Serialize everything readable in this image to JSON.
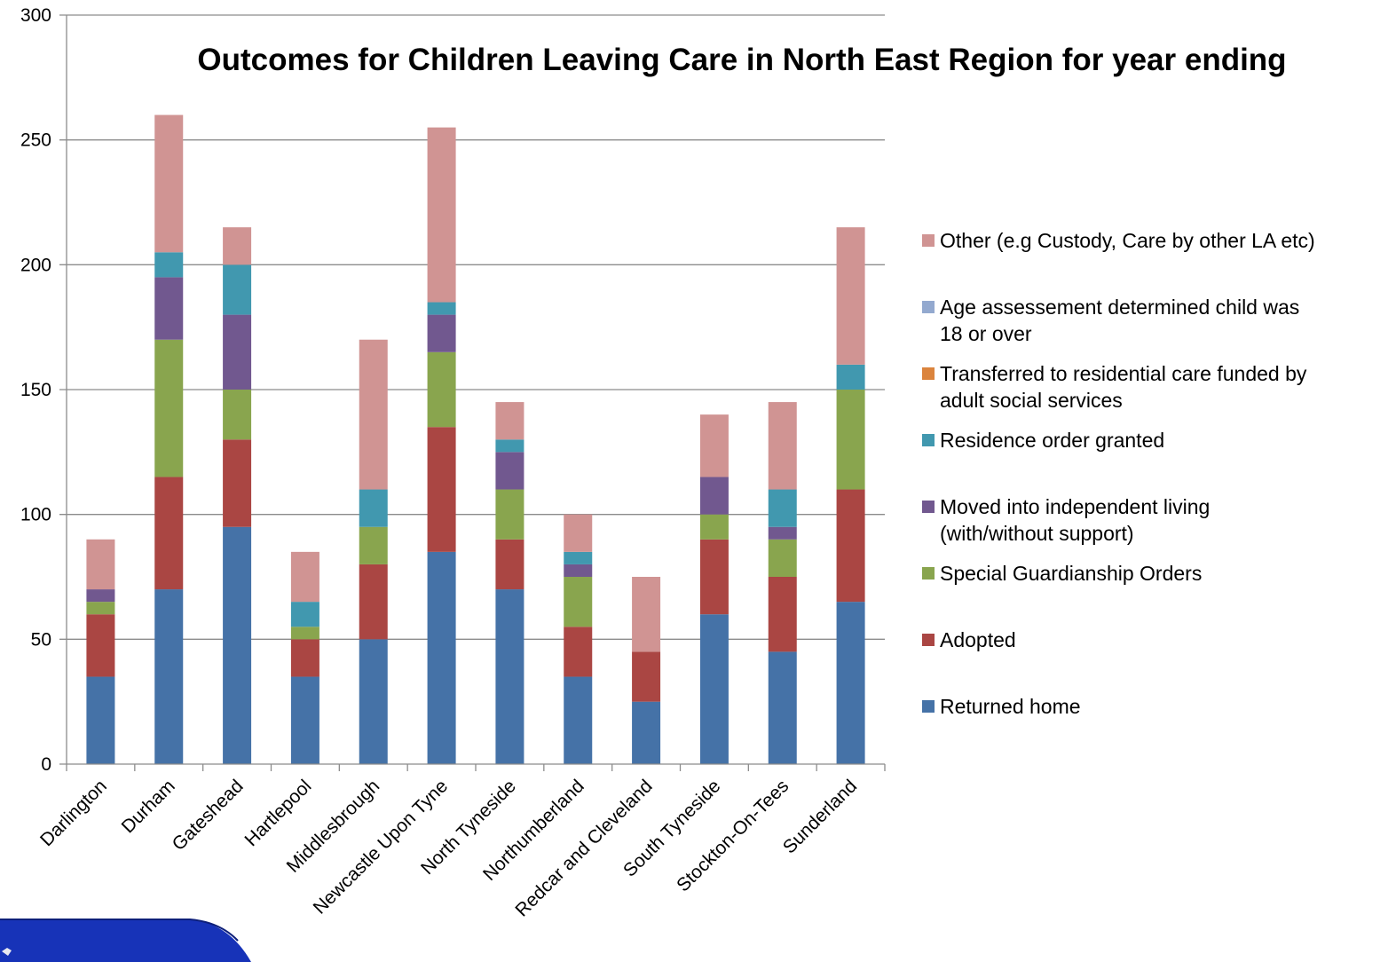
{
  "chart_data": {
    "type": "bar",
    "stacked": true,
    "title": "Outcomes for Children Leaving Care in North East Region for year ending",
    "xlabel": "",
    "ylabel": "",
    "ylim": [
      0,
      300
    ],
    "yticks": [
      0,
      50,
      100,
      150,
      200,
      250,
      300
    ],
    "grid": true,
    "legend_position": "right",
    "categories": [
      "Darlington",
      "Durham",
      "Gateshead",
      "Hartlepool",
      "Middlesbrough",
      "Newcastle Upon Tyne",
      "North Tyneside",
      "Northumberland",
      "Redcar and Cleveland",
      "South Tyneside",
      "Stockton-On-Tees",
      "Sunderland"
    ],
    "series": [
      {
        "name": "Returned  home",
        "color": "#4572A7",
        "values": [
          35,
          70,
          95,
          35,
          50,
          85,
          70,
          35,
          25,
          60,
          45,
          65
        ]
      },
      {
        "name": "Adopted",
        "color": "#AA4643",
        "values": [
          25,
          45,
          35,
          15,
          30,
          50,
          20,
          20,
          20,
          30,
          30,
          45
        ]
      },
      {
        "name": "Special Guardianship Orders",
        "color": "#89A54E",
        "values": [
          5,
          55,
          20,
          5,
          15,
          30,
          20,
          20,
          0,
          10,
          15,
          40
        ]
      },
      {
        "name": "Moved into independent living (with/without support)",
        "color": "#71588F",
        "values": [
          5,
          25,
          30,
          0,
          0,
          15,
          15,
          5,
          0,
          15,
          5,
          0
        ]
      },
      {
        "name": "Residence order granted",
        "color": "#4198AF",
        "values": [
          0,
          10,
          20,
          10,
          15,
          5,
          5,
          5,
          0,
          0,
          15,
          10
        ]
      },
      {
        "name": "Transferred  to residential care  funded by adult social services",
        "color": "#DB843D",
        "values": [
          0,
          0,
          0,
          0,
          0,
          0,
          0,
          0,
          0,
          0,
          0,
          0
        ]
      },
      {
        "name": "Age assessement determined child was 18 or over",
        "color": "#93A9CF",
        "values": [
          0,
          0,
          0,
          0,
          0,
          0,
          0,
          0,
          0,
          0,
          0,
          0
        ]
      },
      {
        "name": "Other (e.g Custody, Care by other LA etc)",
        "color": "#D09493",
        "values": [
          20,
          55,
          15,
          20,
          60,
          70,
          15,
          15,
          30,
          25,
          35,
          55
        ]
      }
    ],
    "legend": [
      {
        "lines": [
          "Other (e.g Custody, Care by other LA etc)"
        ],
        "color": "#D09493"
      },
      {
        "lines": [
          "Age assessement determined child was",
          "18 or over"
        ],
        "color": "#93A9CF"
      },
      {
        "lines": [
          "Transferred  to residential care  funded by",
          "adult social services"
        ],
        "color": "#DB843D"
      },
      {
        "lines": [
          "Residence order granted"
        ],
        "color": "#4198AF"
      },
      {
        "lines": [
          "Moved into independent living",
          "(with/without support)"
        ],
        "color": "#71588F"
      },
      {
        "lines": [
          "Special Guardianship Orders"
        ],
        "color": "#89A54E"
      },
      {
        "lines": [
          "Adopted"
        ],
        "color": "#AA4643"
      },
      {
        "lines": [
          "Returned  home"
        ],
        "color": "#4572A7"
      }
    ]
  },
  "decoration": {
    "corner_logo": "blue-corner-logo-icon",
    "logo_color": "#1733B8"
  }
}
